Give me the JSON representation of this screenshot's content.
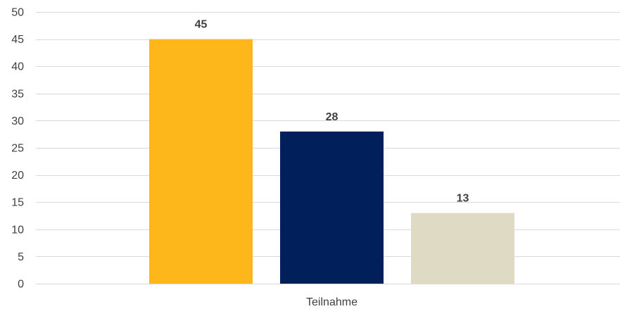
{
  "chart_data": {
    "type": "bar",
    "categories": [
      "Teilnahme"
    ],
    "series": [
      {
        "values": [
          45
        ],
        "color": "#FDB71A"
      },
      {
        "values": [
          28
        ],
        "color": "#001F5B"
      },
      {
        "values": [
          13
        ],
        "color": "#DEDAC4"
      }
    ],
    "ylim": [
      0,
      50
    ],
    "yticks": [
      0,
      5,
      10,
      15,
      20,
      25,
      30,
      35,
      40,
      45,
      50
    ],
    "grid": true,
    "legend": "none",
    "data_labels": true
  }
}
